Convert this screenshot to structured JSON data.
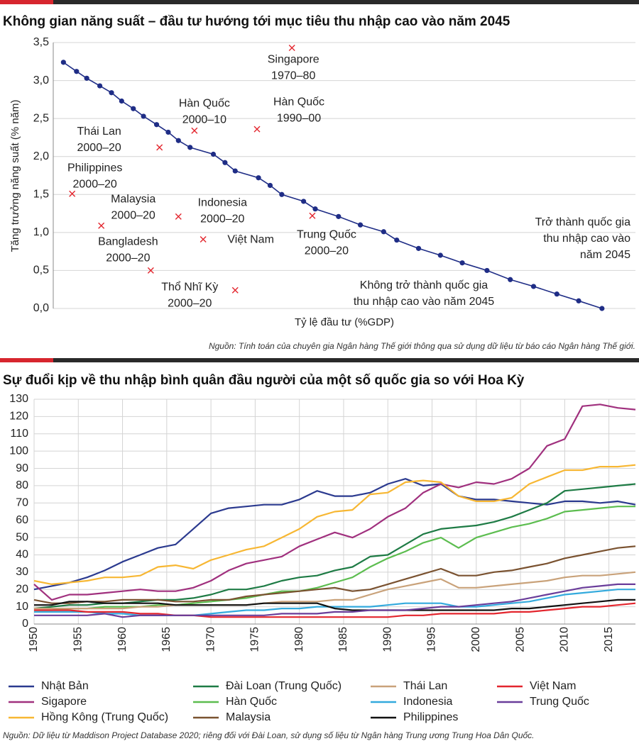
{
  "chart_data": [
    {
      "type": "scatter",
      "title": "Không gian năng suất – đầu tư hướng tới mục tiêu thu nhập cao vào năm 2045",
      "y_label": "Tăng trưởng năng suất (% năm)",
      "x_label": "Tỷ lệ đầu tư (%GDP)",
      "source": "Nguồn: Tính toán của chuyên gia Ngân hàng Thế giới thông qua sử dụng dữ liệu từ báo cáo Ngân hàng Thế giới.",
      "xlim": [
        10,
        50
      ],
      "ylim": [
        0,
        3.5
      ],
      "yticks": [
        {
          "value": 0,
          "label": "0,0"
        },
        {
          "value": 0.5,
          "label": "0,5"
        },
        {
          "value": 1,
          "label": "1,0"
        },
        {
          "value": 1.5,
          "label": "1,5"
        },
        {
          "value": 2,
          "label": "2,0"
        },
        {
          "value": 2.5,
          "label": "2,5"
        },
        {
          "value": 3,
          "label": "3,0"
        },
        {
          "value": 3.5,
          "label": "3,5"
        }
      ],
      "grid": true,
      "series": [
        {
          "color": "#1f2d86",
          "x": [
            10.7,
            11.6,
            12.3,
            13.2,
            14.0,
            14.7,
            15.5,
            16.2,
            17.1,
            17.9,
            18.6,
            19.4,
            21.0,
            21.8,
            22.5,
            24.1,
            24.9,
            25.7,
            27.2,
            28.0,
            29.6,
            31.1,
            32.7,
            33.6,
            35.1,
            36.6,
            38.1,
            39.8,
            41.4,
            43.0,
            44.6,
            46.1,
            47.7
          ],
          "values": [
            3.24,
            3.12,
            3.03,
            2.93,
            2.84,
            2.73,
            2.63,
            2.53,
            2.42,
            2.32,
            2.21,
            2.12,
            2.03,
            1.92,
            1.81,
            1.72,
            1.62,
            1.5,
            1.41,
            1.31,
            1.21,
            1.1,
            1.01,
            0.9,
            0.79,
            0.7,
            0.6,
            0.5,
            0.38,
            0.29,
            0.19,
            0.1,
            0
          ]
        }
      ],
      "points": {
        "color": "#e3262e",
        "x": [
          26.4,
          24.0,
          19.7,
          17.3,
          11.3,
          13.3,
          18.6,
          27.8,
          20.3,
          16.7,
          22.5
        ],
        "values": [
          3.43,
          2.36,
          2.34,
          2.12,
          1.51,
          1.09,
          1.21,
          1.22,
          0.91,
          0.5,
          0.24
        ],
        "labels": [
          [
            "Singapore",
            "1970–80"
          ],
          [
            "Hàn Quốc",
            "1990–00"
          ],
          [
            "Hàn Quốc",
            "2000–10"
          ],
          [
            "Thái Lan",
            "2000–20"
          ],
          [
            "Philippines",
            "2000–20"
          ],
          [
            "Malaysia",
            "2000–20"
          ],
          [
            "Indonesia",
            "2000–20"
          ],
          [
            "Trung Quốc",
            "2000–20"
          ],
          [
            "Việt Nam"
          ],
          [
            "Bangladesh",
            "2000–20"
          ],
          [
            "Thổ Nhĩ Kỳ",
            "2000–20"
          ]
        ],
        "label_colors": [
          "#222",
          "#222",
          "#222",
          "#222",
          "#222",
          "#222",
          "#222",
          "#222",
          "#e3262e",
          "#222",
          "#222"
        ]
      },
      "annotations": [
        {
          "lines": [
            "Trở thành quốc gia",
            "thu nhập cao vào",
            "năm 2045"
          ],
          "color": "#1f2d86"
        },
        {
          "lines": [
            "Không trở thành quốc gia",
            "thu nhập cao vào năm 2045"
          ],
          "color": "#111111"
        }
      ]
    },
    {
      "type": "line",
      "title": "Sự đuổi kịp về thu nhập bình quân đầu người của một số quốc gia so với Hoa Kỳ",
      "source": "Nguồn: Dữ liệu từ Maddison Project Database 2020; riêng đối với Đài Loan, sử dụng số liệu từ Ngân hàng Trung ương Trung Hoa Dân Quốc.",
      "xlim": [
        1950,
        2018
      ],
      "xticks": [
        1950,
        1955,
        1960,
        1965,
        1970,
        1975,
        1980,
        1985,
        1990,
        1995,
        2000,
        2005,
        2010,
        2015
      ],
      "ylim": [
        0,
        130
      ],
      "yticks": [
        0,
        10,
        20,
        30,
        40,
        50,
        60,
        70,
        80,
        90,
        100,
        110,
        120,
        130
      ],
      "grid": true,
      "x": [
        1950,
        1952,
        1954,
        1956,
        1958,
        1960,
        1962,
        1964,
        1966,
        1968,
        1970,
        1972,
        1974,
        1976,
        1978,
        1980,
        1982,
        1984,
        1986,
        1988,
        1990,
        1992,
        1994,
        1996,
        1998,
        2000,
        2002,
        2004,
        2006,
        2008,
        2010,
        2012,
        2014,
        2016,
        2018
      ],
      "series": [
        {
          "name": "Nhật Bản",
          "color": "#2b3a8f",
          "values": [
            20,
            22,
            24,
            27,
            31,
            36,
            40,
            44,
            46,
            55,
            64,
            67,
            68,
            69,
            69,
            72,
            77,
            74,
            74,
            76,
            81,
            84,
            80,
            81,
            74,
            72,
            72,
            71,
            70,
            69,
            71,
            71,
            70,
            71,
            69
          ]
        },
        {
          "name": "Sigapore",
          "color": "#a0307e",
          "values": [
            23,
            14,
            17,
            17,
            18,
            19,
            20,
            19,
            19,
            21,
            25,
            31,
            35,
            37,
            39,
            45,
            49,
            53,
            50,
            55,
            62,
            67,
            76,
            81,
            79,
            82,
            81,
            84,
            90,
            103,
            107,
            126,
            127,
            125,
            124
          ]
        },
        {
          "name": "Hồng Kông (Trung Quốc)",
          "color": "#f7b733",
          "values": [
            25,
            23,
            24,
            25,
            27,
            27,
            28,
            33,
            34,
            32,
            37,
            40,
            43,
            45,
            50,
            55,
            62,
            65,
            66,
            75,
            76,
            82,
            83,
            82,
            74,
            71,
            71,
            73,
            81,
            85,
            89,
            89,
            91,
            91,
            92
          ]
        },
        {
          "name": "Đài Loan (Trung Quốc)",
          "color": "#1e7b45",
          "values": [
            9,
            10,
            11,
            11,
            12,
            12,
            13,
            14,
            14,
            15,
            17,
            20,
            20,
            22,
            25,
            27,
            28,
            31,
            33,
            39,
            40,
            46,
            52,
            55,
            56,
            57,
            59,
            62,
            66,
            70,
            77,
            78,
            79,
            80,
            81
          ]
        },
        {
          "name": "Hàn Quốc",
          "color": "#5cbd4f",
          "values": [
            8,
            8,
            9,
            9,
            10,
            10,
            10,
            11,
            11,
            12,
            13,
            14,
            15,
            17,
            19,
            19,
            21,
            24,
            27,
            33,
            38,
            42,
            47,
            50,
            44,
            50,
            53,
            56,
            58,
            61,
            65,
            66,
            67,
            68,
            68
          ]
        },
        {
          "name": "Malaysia",
          "color": "#7a5230",
          "values": [
            14,
            12,
            12,
            13,
            13,
            14,
            14,
            14,
            13,
            13,
            14,
            14,
            16,
            17,
            18,
            19,
            20,
            21,
            19,
            20,
            23,
            26,
            29,
            32,
            28,
            28,
            30,
            31,
            33,
            35,
            38,
            40,
            42,
            44,
            45
          ]
        },
        {
          "name": "Thái Lan",
          "color": "#c9a27a",
          "values": [
            9,
            9,
            9,
            9,
            9,
            9,
            10,
            10,
            11,
            11,
            11,
            11,
            11,
            12,
            13,
            13,
            13,
            14,
            14,
            17,
            20,
            22,
            24,
            26,
            21,
            21,
            22,
            23,
            24,
            25,
            27,
            28,
            28,
            29,
            30
          ]
        },
        {
          "name": "Indonesia",
          "color": "#33aadd",
          "values": [
            7,
            7,
            7,
            7,
            6,
            6,
            5,
            5,
            5,
            5,
            6,
            7,
            8,
            8,
            9,
            9,
            10,
            10,
            10,
            10,
            11,
            12,
            12,
            12,
            10,
            10,
            11,
            12,
            13,
            15,
            17,
            18,
            19,
            20,
            20
          ]
        },
        {
          "name": "Philippines",
          "color": "#111111",
          "values": [
            11,
            11,
            13,
            13,
            12,
            12,
            12,
            12,
            11,
            11,
            11,
            11,
            11,
            12,
            12,
            12,
            12,
            9,
            8,
            8,
            8,
            8,
            8,
            8,
            8,
            8,
            8,
            9,
            9,
            10,
            11,
            12,
            13,
            14,
            14
          ]
        },
        {
          "name": "Việt Nam",
          "color": "#e3262e",
          "values": [
            8,
            8,
            8,
            7,
            7,
            7,
            6,
            6,
            5,
            5,
            4,
            4,
            4,
            4,
            4,
            4,
            4,
            4,
            4,
            4,
            4,
            5,
            5,
            6,
            6,
            6,
            6,
            7,
            7,
            8,
            9,
            10,
            10,
            11,
            12
          ]
        },
        {
          "name": "Trung Quốc",
          "color": "#6a3d9a",
          "values": [
            5,
            5,
            5,
            5,
            6,
            4,
            5,
            5,
            5,
            5,
            5,
            5,
            5,
            5,
            6,
            6,
            6,
            7,
            7,
            8,
            8,
            8,
            9,
            10,
            10,
            11,
            12,
            13,
            15,
            17,
            19,
            21,
            22,
            23,
            23
          ]
        }
      ]
    }
  ]
}
